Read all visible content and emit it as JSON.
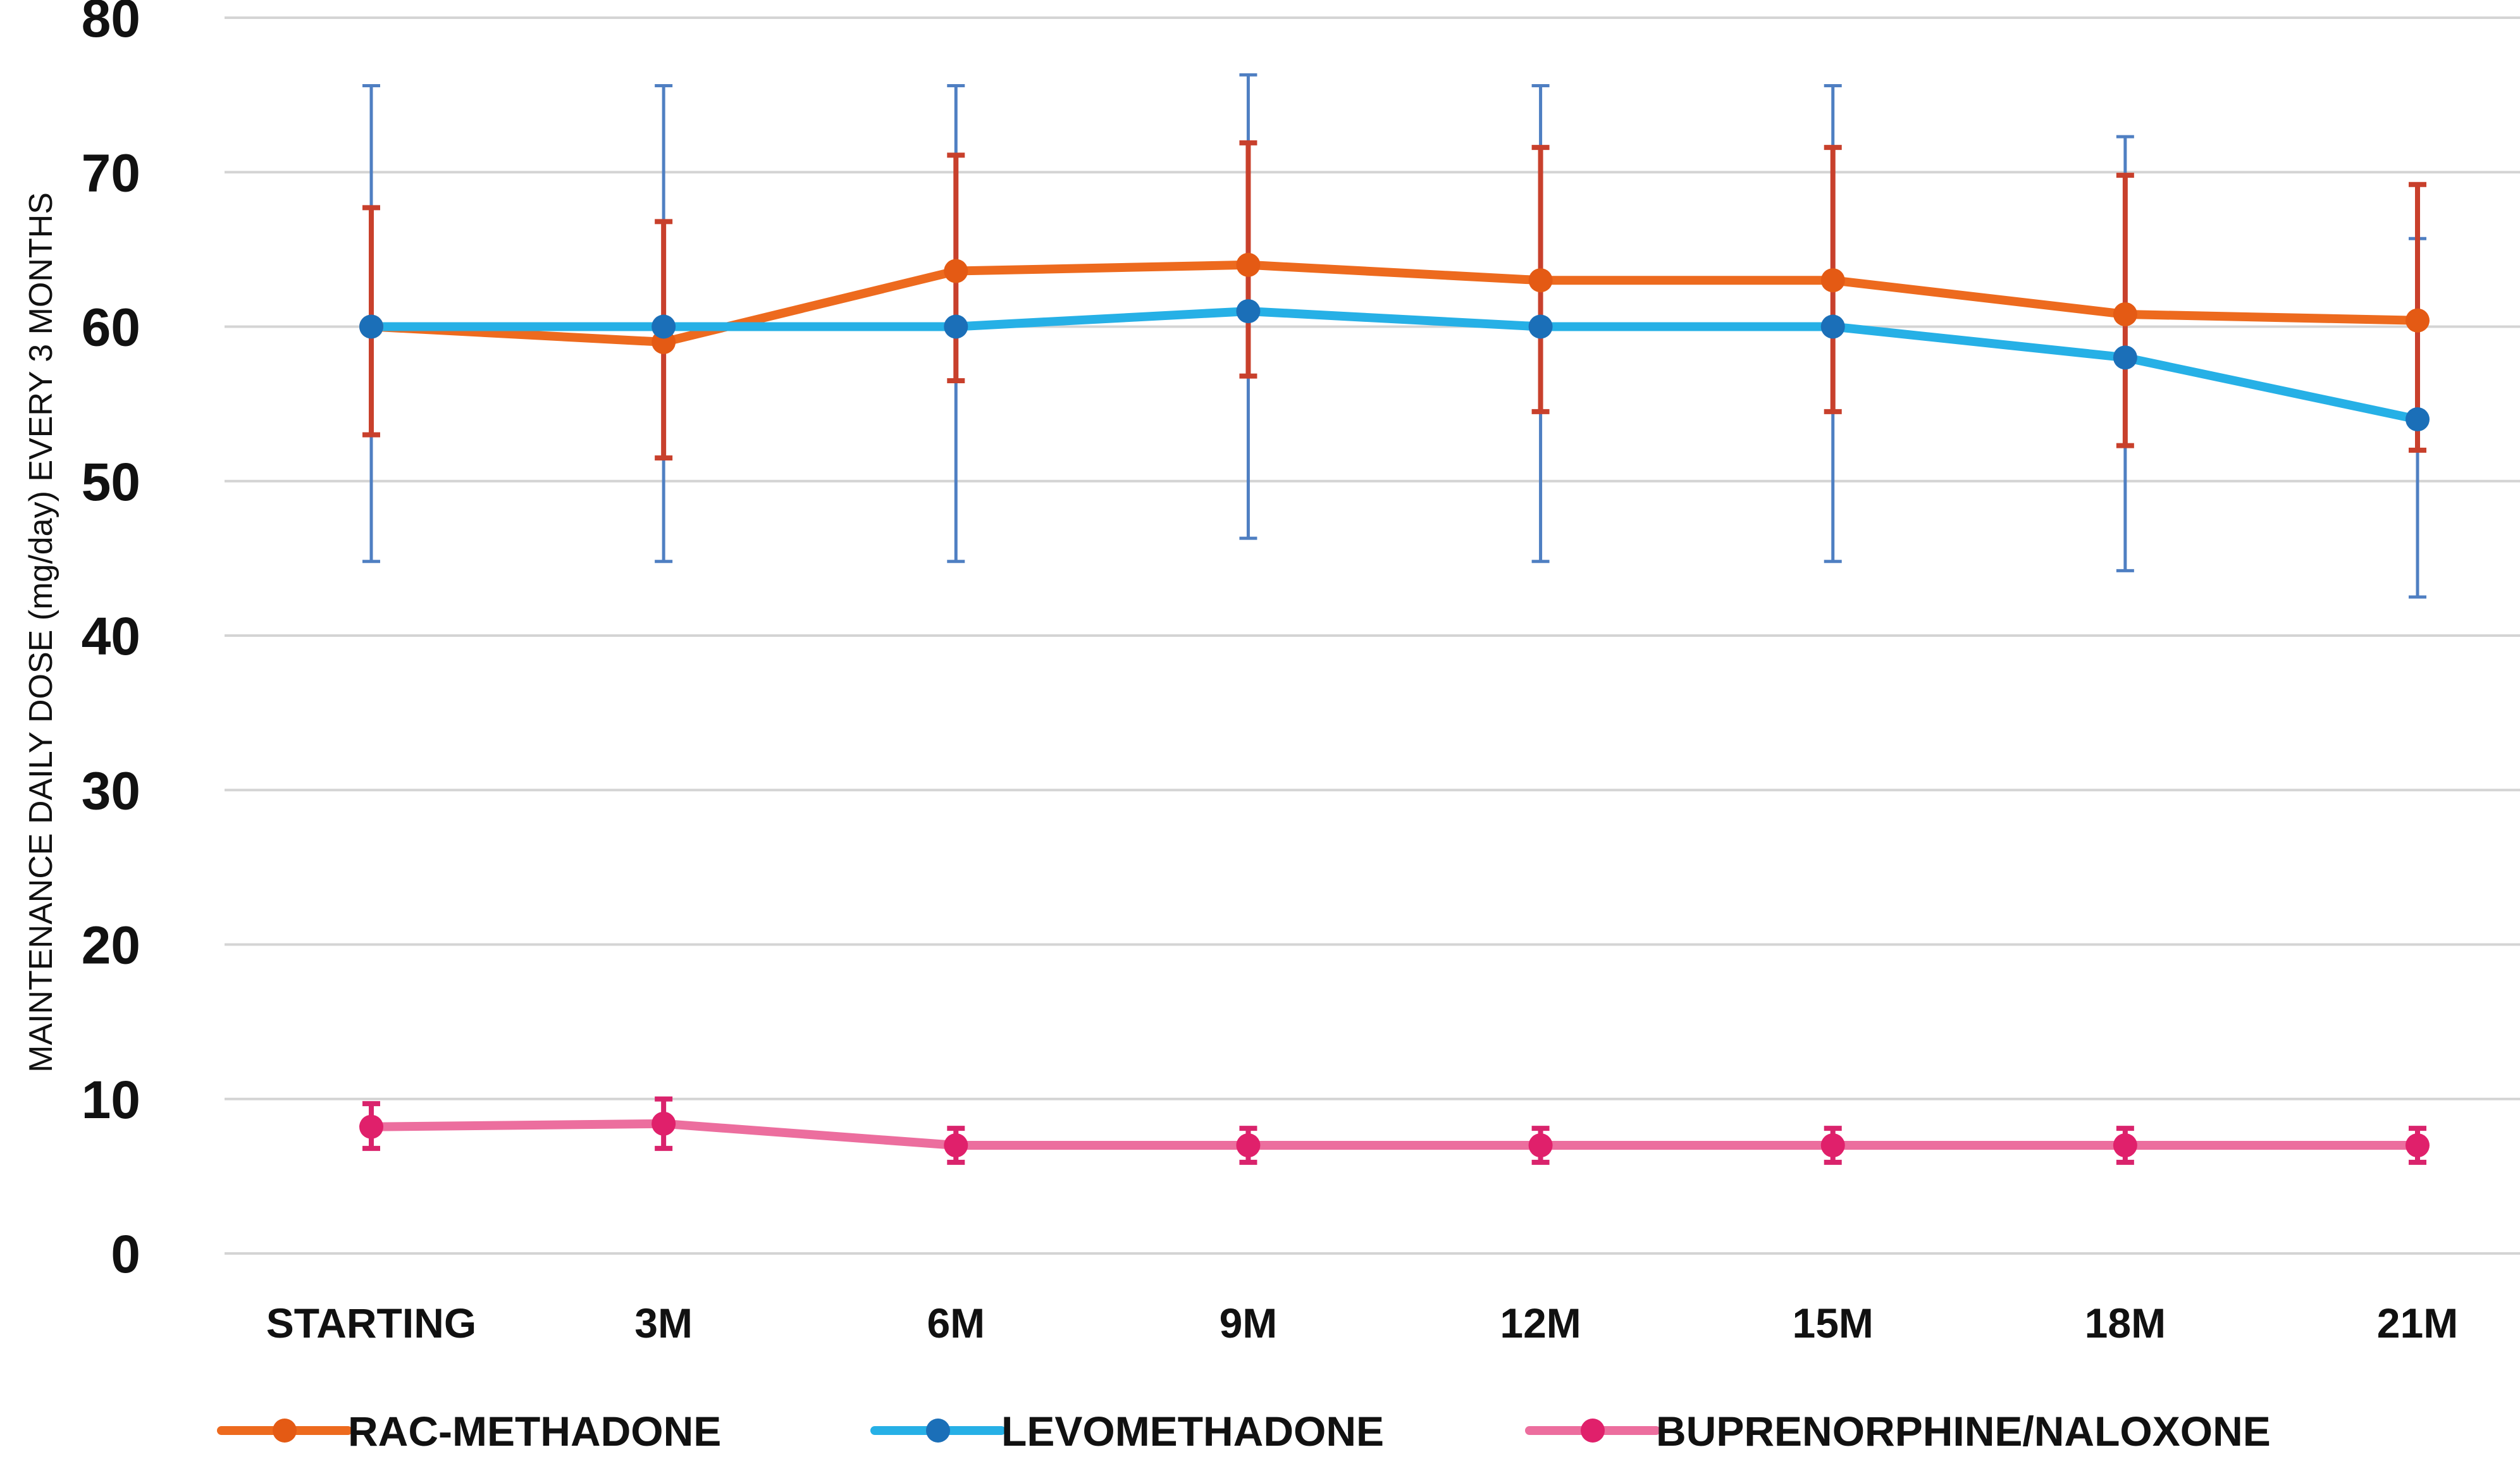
{
  "chart_data": {
    "type": "line",
    "title": "",
    "xlabel": "",
    "ylabel": "MAINTENANCE DAILY DOSE (mg/day) EVERY 3 MONTHS",
    "ylim": [
      0,
      80
    ],
    "yticks": [
      0,
      10,
      20,
      30,
      40,
      50,
      60,
      70,
      80
    ],
    "ytick_labels": [
      "0",
      "10",
      "20",
      "30",
      "40",
      "50",
      "60",
      "70",
      "80"
    ],
    "grid": true,
    "legend_position": "bottom",
    "categories": [
      "STARTING",
      "3M",
      "6M",
      "9M",
      "12M",
      "15M",
      "18M",
      "21M"
    ],
    "series": [
      {
        "name": "RAC-METHADONE",
        "color": "#ED6A1E",
        "error_color": "#C8402C",
        "values": [
          60,
          59,
          63.6,
          64,
          63,
          63,
          60.8,
          60.4
        ],
        "error_low": [
          53,
          51.5,
          56.5,
          56.8,
          54.5,
          54.5,
          52.3,
          52
        ],
        "error_high": [
          67.7,
          66.8,
          71.1,
          71.9,
          71.6,
          71.6,
          69.8,
          69.2
        ]
      },
      {
        "name": "LEVOMETHADONE",
        "color": "#26B0E6",
        "error_color": "#4F7FC2",
        "values": [
          60,
          60,
          60,
          61,
          60,
          60,
          58,
          54
        ],
        "error_low": [
          44.8,
          44.8,
          44.8,
          46.3,
          44.8,
          44.8,
          44.2,
          42.5
        ],
        "error_high": [
          75.6,
          75.6,
          75.6,
          76.3,
          75.6,
          75.6,
          72.3,
          65.7
        ]
      },
      {
        "name": "BUPRENORPHINE/NALOXONE",
        "color": "#EC6E9E",
        "error_color": "#D9236C",
        "values": [
          8.2,
          8.4,
          7,
          7,
          7,
          7,
          7,
          7
        ],
        "error_low": [
          6.8,
          6.8,
          5.9,
          5.9,
          5.9,
          5.9,
          5.9,
          5.9
        ],
        "error_high": [
          9.7,
          10,
          8.1,
          8.1,
          8.1,
          8.1,
          8.1,
          8.1
        ]
      }
    ]
  }
}
